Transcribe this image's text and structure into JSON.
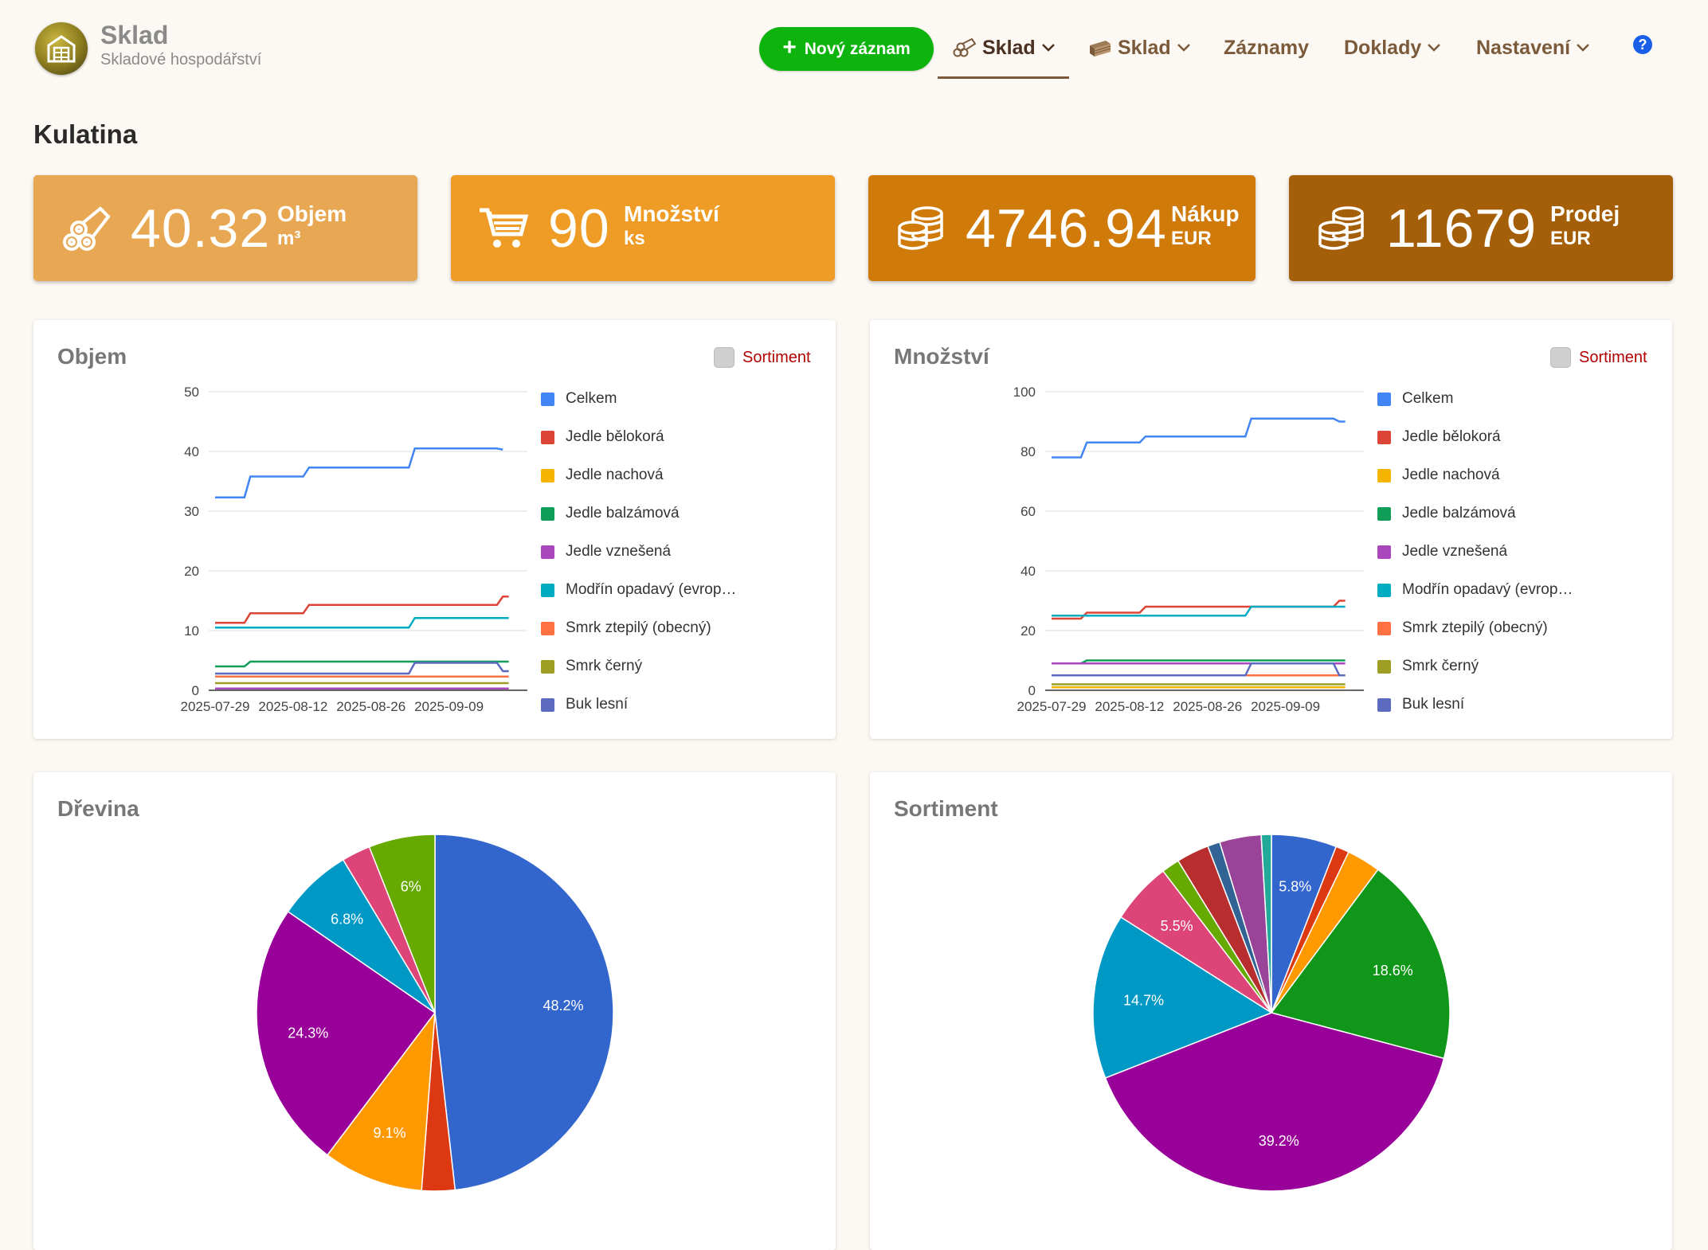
{
  "brand": {
    "title": "Sklad",
    "subtitle": "Skladové hospodářství"
  },
  "header": {
    "new_button": "Nový záznam",
    "nav": [
      {
        "label": "Sklad",
        "icon": "logs-icon",
        "dropdown": true,
        "active": true
      },
      {
        "label": "Sklad",
        "icon": "boards-icon",
        "dropdown": true,
        "active": false
      },
      {
        "label": "Záznamy",
        "dropdown": false,
        "active": false
      },
      {
        "label": "Doklady",
        "dropdown": true,
        "active": false
      },
      {
        "label": "Nastavení",
        "dropdown": true,
        "active": false
      }
    ],
    "help_label": "?"
  },
  "page_title": "Kulatina",
  "stats": [
    {
      "value": "40.32",
      "label": "Objem",
      "unit": "m³",
      "icon": "logs-icon",
      "color": "#e8a853"
    },
    {
      "value": "90",
      "label": "Množství",
      "unit": "ks",
      "icon": "cart-icon",
      "color": "#ee9c25"
    },
    {
      "value": "4746.94",
      "label": "Nákup",
      "unit": "EUR",
      "icon": "coins-icon",
      "color": "#d07a0a"
    },
    {
      "value": "11679",
      "label": "Prodej",
      "unit": "EUR",
      "icon": "coins-icon",
      "color": "#a65f09"
    }
  ],
  "toggle_label": "Sortiment",
  "legend": [
    "Celkem",
    "Jedle bělokorá",
    "Jedle nachová",
    "Jedle balzámová",
    "Jedle vznešená",
    "Modřín opadavý (evrop…",
    "Smrk ztepilý (obecný)",
    "Smrk černý",
    "Buk lesní"
  ],
  "colors": {
    "series": [
      "#4285f4",
      "#db4437",
      "#f4b400",
      "#0f9d58",
      "#ab47bc",
      "#00acc1",
      "#ff7043",
      "#9e9d24",
      "#5c6bc0"
    ],
    "pie": [
      "#3366cc",
      "#dc3912",
      "#ff9900",
      "#990099",
      "#0099c6",
      "#dd4477",
      "#66aa00",
      "#109618",
      "#b82e2e",
      "#316395",
      "#994499",
      "#22aa99"
    ]
  },
  "chart_data": [
    {
      "type": "line",
      "title": "Objem",
      "x": [
        "2025-07-29",
        "2025-08-12",
        "2025-08-26",
        "2025-09-09"
      ],
      "ylim": [
        0,
        50
      ],
      "yticks": [
        0,
        10,
        20,
        30,
        40,
        50
      ],
      "xlim_days": [
        0,
        51
      ],
      "series": [
        {
          "name": "Celkem",
          "points": [
            [
              0,
              32.3
            ],
            [
              5,
              32.3
            ],
            [
              6,
              35.8
            ],
            [
              15,
              35.8
            ],
            [
              16,
              37.3
            ],
            [
              33,
              37.3
            ],
            [
              34,
              40.5
            ],
            [
              48,
              40.5
            ],
            [
              49,
              40.3
            ]
          ]
        },
        {
          "name": "Jedle bělokorá",
          "points": [
            [
              0,
              11.3
            ],
            [
              5,
              11.3
            ],
            [
              6,
              12.9
            ],
            [
              15,
              12.9
            ],
            [
              16,
              14.3
            ],
            [
              48,
              14.3
            ],
            [
              49,
              15.7
            ],
            [
              50,
              15.7
            ]
          ]
        },
        {
          "name": "Jedle nachová",
          "points": [
            [
              0,
              0.3
            ],
            [
              50,
              0.3
            ]
          ]
        },
        {
          "name": "Jedle balzámová",
          "points": [
            [
              0,
              4
            ],
            [
              5,
              4
            ],
            [
              6,
              4.8
            ],
            [
              50,
              4.8
            ]
          ]
        },
        {
          "name": "Jedle vznešená",
          "points": [
            [
              0,
              0.3
            ],
            [
              50,
              0.3
            ]
          ]
        },
        {
          "name": "Modřín opadavý (evrop…",
          "points": [
            [
              0,
              10.5
            ],
            [
              33,
              10.5
            ],
            [
              34,
              12.1
            ],
            [
              50,
              12.1
            ]
          ]
        },
        {
          "name": "Smrk ztepilý (obecný)",
          "points": [
            [
              0,
              2.3
            ],
            [
              50,
              2.3
            ]
          ]
        },
        {
          "name": "Smrk černý",
          "points": [
            [
              0,
              1.2
            ],
            [
              50,
              1.2
            ]
          ]
        },
        {
          "name": "Buk lesní",
          "points": [
            [
              0,
              2.8
            ],
            [
              33,
              2.8
            ],
            [
              34,
              4.6
            ],
            [
              48,
              4.6
            ],
            [
              49,
              3.2
            ],
            [
              50,
              3.2
            ]
          ]
        }
      ]
    },
    {
      "type": "line",
      "title": "Množství",
      "x": [
        "2025-07-29",
        "2025-08-12",
        "2025-08-26",
        "2025-09-09"
      ],
      "ylim": [
        0,
        100
      ],
      "yticks": [
        0,
        20,
        40,
        60,
        80,
        100
      ],
      "xlim_days": [
        0,
        51
      ],
      "series": [
        {
          "name": "Celkem",
          "points": [
            [
              0,
              78
            ],
            [
              5,
              78
            ],
            [
              6,
              83
            ],
            [
              15,
              83
            ],
            [
              16,
              85
            ],
            [
              33,
              85
            ],
            [
              34,
              91
            ],
            [
              48,
              91
            ],
            [
              49,
              90
            ],
            [
              50,
              90
            ]
          ]
        },
        {
          "name": "Jedle bělokorá",
          "points": [
            [
              0,
              24
            ],
            [
              5,
              24
            ],
            [
              6,
              26
            ],
            [
              15,
              26
            ],
            [
              16,
              28
            ],
            [
              48,
              28
            ],
            [
              49,
              30
            ],
            [
              50,
              30
            ]
          ]
        },
        {
          "name": "Jedle nachová",
          "points": [
            [
              0,
              1
            ],
            [
              50,
              1
            ]
          ]
        },
        {
          "name": "Jedle balzámová",
          "points": [
            [
              0,
              9
            ],
            [
              5,
              9
            ],
            [
              6,
              10
            ],
            [
              50,
              10
            ]
          ]
        },
        {
          "name": "Jedle vznešená",
          "points": [
            [
              0,
              9
            ],
            [
              50,
              9
            ]
          ]
        },
        {
          "name": "Modřín opadavý (evrop…",
          "points": [
            [
              0,
              25
            ],
            [
              33,
              25
            ],
            [
              34,
              28
            ],
            [
              50,
              28
            ]
          ]
        },
        {
          "name": "Smrk ztepilý (obecný)",
          "points": [
            [
              0,
              5
            ],
            [
              50,
              5
            ]
          ]
        },
        {
          "name": "Smrk černý",
          "points": [
            [
              0,
              2
            ],
            [
              50,
              2
            ]
          ]
        },
        {
          "name": "Buk lesní",
          "points": [
            [
              0,
              5
            ],
            [
              33,
              5
            ],
            [
              34,
              9
            ],
            [
              48,
              9
            ],
            [
              49,
              5
            ],
            [
              50,
              5
            ]
          ]
        }
      ]
    },
    {
      "type": "pie",
      "title": "Dřevina",
      "slices": [
        {
          "value": 48.2,
          "label": "48.2%",
          "color_index": 0
        },
        {
          "value": 3.0,
          "label": "",
          "color_index": 1
        },
        {
          "value": 9.1,
          "label": "9.1%",
          "color_index": 2
        },
        {
          "value": 24.3,
          "label": "24.3%",
          "color_index": 3
        },
        {
          "value": 6.8,
          "label": "6.8%",
          "color_index": 4
        },
        {
          "value": 2.6,
          "label": "",
          "color_index": 5
        },
        {
          "value": 6.0,
          "label": "6%",
          "color_index": 6
        }
      ]
    },
    {
      "type": "pie",
      "title": "Sortiment",
      "slices": [
        {
          "value": 5.8,
          "label": "5.8%",
          "color_index": 0
        },
        {
          "value": 1.2,
          "label": "",
          "color_index": 1
        },
        {
          "value": 3.0,
          "label": "",
          "color_index": 2
        },
        {
          "value": 18.6,
          "label": "18.6%",
          "color_index": 7
        },
        {
          "value": 39.2,
          "label": "39.2%",
          "color_index": 3
        },
        {
          "value": 14.7,
          "label": "14.7%",
          "color_index": 4
        },
        {
          "value": 5.5,
          "label": "5.5%",
          "color_index": 5
        },
        {
          "value": 1.6,
          "label": "",
          "color_index": 6
        },
        {
          "value": 2.9,
          "label": "",
          "color_index": 8
        },
        {
          "value": 1.1,
          "label": "",
          "color_index": 9
        },
        {
          "value": 3.7,
          "label": "",
          "color_index": 10
        },
        {
          "value": 0.9,
          "label": "",
          "color_index": 11
        }
      ]
    }
  ]
}
